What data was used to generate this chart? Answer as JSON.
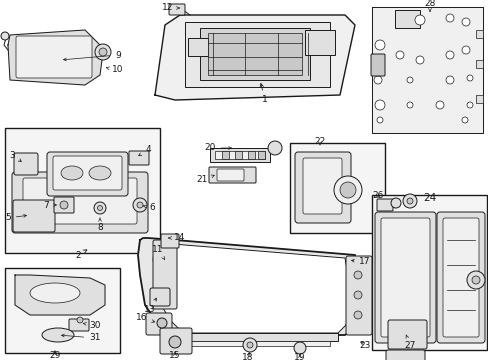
{
  "background_color": "#ffffff",
  "line_color": "#1a1a1a",
  "fill_light": "#f0f0f0",
  "fill_mid": "#e0e0e0",
  "fill_dark": "#c8c8c8",
  "fig_width": 4.89,
  "fig_height": 3.6,
  "dpi": 100,
  "lw_thick": 1.0,
  "lw_mid": 0.7,
  "lw_thin": 0.5,
  "fs_label": 6.5,
  "fs_big": 7.5
}
